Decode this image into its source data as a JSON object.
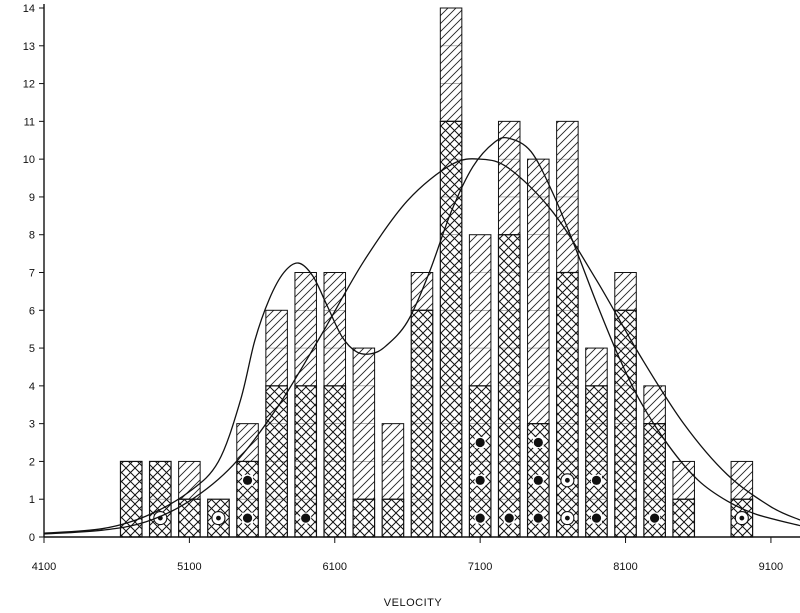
{
  "chart_data": {
    "type": "bar",
    "title": "",
    "xlabel": "VELOCITY",
    "ylabel": "",
    "xlim": [
      4100,
      9300
    ],
    "ylim": [
      0,
      14
    ],
    "xticks": [
      4100,
      5100,
      6100,
      7100,
      8100,
      9100
    ],
    "yticks": [
      0,
      1,
      2,
      3,
      4,
      5,
      6,
      7,
      8,
      9,
      10,
      11,
      12,
      13,
      14
    ],
    "bin_width": 200,
    "grid": false,
    "bars": [
      {
        "x": 4700,
        "total": 2,
        "crosshatch": 2,
        "circle_dots": 0,
        "solid_dots": 0
      },
      {
        "x": 4900,
        "total": 2,
        "crosshatch": 2,
        "circle_dots": 1,
        "solid_dots": 0
      },
      {
        "x": 5100,
        "total": 2,
        "crosshatch": 1,
        "circle_dots": 0,
        "solid_dots": 0
      },
      {
        "x": 5300,
        "total": 1,
        "crosshatch": 1,
        "circle_dots": 1,
        "solid_dots": 0
      },
      {
        "x": 5500,
        "total": 3,
        "crosshatch": 2,
        "circle_dots": 0,
        "solid_dots": 2
      },
      {
        "x": 5700,
        "total": 6,
        "crosshatch": 4,
        "circle_dots": 0,
        "solid_dots": 0
      },
      {
        "x": 5900,
        "total": 7,
        "crosshatch": 4,
        "circle_dots": 0,
        "solid_dots": 1
      },
      {
        "x": 6100,
        "total": 7,
        "crosshatch": 4,
        "circle_dots": 0,
        "solid_dots": 0
      },
      {
        "x": 6300,
        "total": 5,
        "crosshatch": 1,
        "circle_dots": 0,
        "solid_dots": 0
      },
      {
        "x": 6500,
        "total": 3,
        "crosshatch": 1,
        "circle_dots": 0,
        "solid_dots": 0
      },
      {
        "x": 6700,
        "total": 7,
        "crosshatch": 6,
        "circle_dots": 0,
        "solid_dots": 0
      },
      {
        "x": 6900,
        "total": 14,
        "crosshatch": 11,
        "circle_dots": 0,
        "solid_dots": 0
      },
      {
        "x": 7100,
        "total": 8,
        "crosshatch": 4,
        "circle_dots": 0,
        "solid_dots": 3
      },
      {
        "x": 7300,
        "total": 11,
        "crosshatch": 8,
        "circle_dots": 0,
        "solid_dots": 1
      },
      {
        "x": 7500,
        "total": 10,
        "crosshatch": 3,
        "circle_dots": 0,
        "solid_dots": 3
      },
      {
        "x": 7700,
        "total": 11,
        "crosshatch": 7,
        "circle_dots": 2,
        "solid_dots": 0
      },
      {
        "x": 7900,
        "total": 5,
        "crosshatch": 4,
        "circle_dots": 0,
        "solid_dots": 2
      },
      {
        "x": 8100,
        "total": 7,
        "crosshatch": 6,
        "circle_dots": 0,
        "solid_dots": 0
      },
      {
        "x": 8300,
        "total": 4,
        "crosshatch": 3,
        "circle_dots": 0,
        "solid_dots": 1
      },
      {
        "x": 8500,
        "total": 2,
        "crosshatch": 1,
        "circle_dots": 0,
        "solid_dots": 0
      },
      {
        "x": 8900,
        "total": 2,
        "crosshatch": 1,
        "circle_dots": 1,
        "solid_dots": 0
      }
    ],
    "curves": [
      {
        "type": "bimodal",
        "points": [
          [
            4100,
            0.1
          ],
          [
            4500,
            0.22
          ],
          [
            4800,
            0.55
          ],
          [
            5100,
            1.2
          ],
          [
            5300,
            2.0
          ],
          [
            5450,
            3.6
          ],
          [
            5550,
            5.2
          ],
          [
            5650,
            6.3
          ],
          [
            5750,
            7.0
          ],
          [
            5850,
            7.25
          ],
          [
            5950,
            6.9
          ],
          [
            6050,
            6.1
          ],
          [
            6150,
            5.3
          ],
          [
            6250,
            4.9
          ],
          [
            6350,
            4.85
          ],
          [
            6450,
            5.05
          ],
          [
            6600,
            5.7
          ],
          [
            6750,
            7.0
          ],
          [
            6900,
            8.6
          ],
          [
            7050,
            9.8
          ],
          [
            7200,
            10.45
          ],
          [
            7300,
            10.55
          ],
          [
            7450,
            10.2
          ],
          [
            7600,
            9.1
          ],
          [
            7750,
            7.7
          ],
          [
            7900,
            6.2
          ],
          [
            8050,
            4.8
          ],
          [
            8200,
            3.6
          ],
          [
            8400,
            2.4
          ],
          [
            8600,
            1.5
          ],
          [
            8800,
            0.95
          ],
          [
            9000,
            0.6
          ],
          [
            9300,
            0.3
          ]
        ]
      },
      {
        "type": "unimodal",
        "points": [
          [
            4100,
            0.08
          ],
          [
            4500,
            0.18
          ],
          [
            4800,
            0.4
          ],
          [
            5100,
            0.95
          ],
          [
            5400,
            1.9
          ],
          [
            5700,
            3.4
          ],
          [
            6000,
            5.3
          ],
          [
            6300,
            7.3
          ],
          [
            6600,
            8.9
          ],
          [
            6900,
            9.85
          ],
          [
            7100,
            10.0
          ],
          [
            7300,
            9.75
          ],
          [
            7600,
            8.6
          ],
          [
            7900,
            6.8
          ],
          [
            8200,
            4.8
          ],
          [
            8500,
            3.0
          ],
          [
            8800,
            1.65
          ],
          [
            9100,
            0.8
          ],
          [
            9300,
            0.45
          ]
        ]
      }
    ]
  }
}
